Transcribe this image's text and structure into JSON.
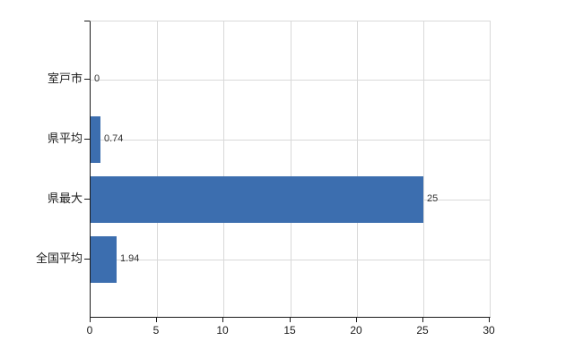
{
  "chart_data": {
    "type": "bar",
    "orientation": "horizontal",
    "title": "",
    "xlabel": "",
    "ylabel": "",
    "categories": [
      "室戸市",
      "県平均",
      "県最大",
      "全国平均"
    ],
    "values": [
      0,
      0.74,
      25,
      1.94
    ],
    "value_labels": [
      "0",
      "0.74",
      "25",
      "1.94"
    ],
    "x_ticks": [
      0,
      5,
      10,
      15,
      20,
      25,
      30
    ],
    "x_tick_labels": [
      "0",
      "5",
      "10",
      "15",
      "20",
      "25",
      "30"
    ],
    "xlim": [
      0,
      30
    ],
    "grid": true,
    "legend": false,
    "colors": {
      "bar": "#3c6eaf",
      "grid": "#d9d9d9",
      "plot_border": "#d9d9d9",
      "axis": "#1a1a1a",
      "text": "#1a1a1a",
      "value_text": "#333333",
      "background": "#ffffff"
    }
  }
}
